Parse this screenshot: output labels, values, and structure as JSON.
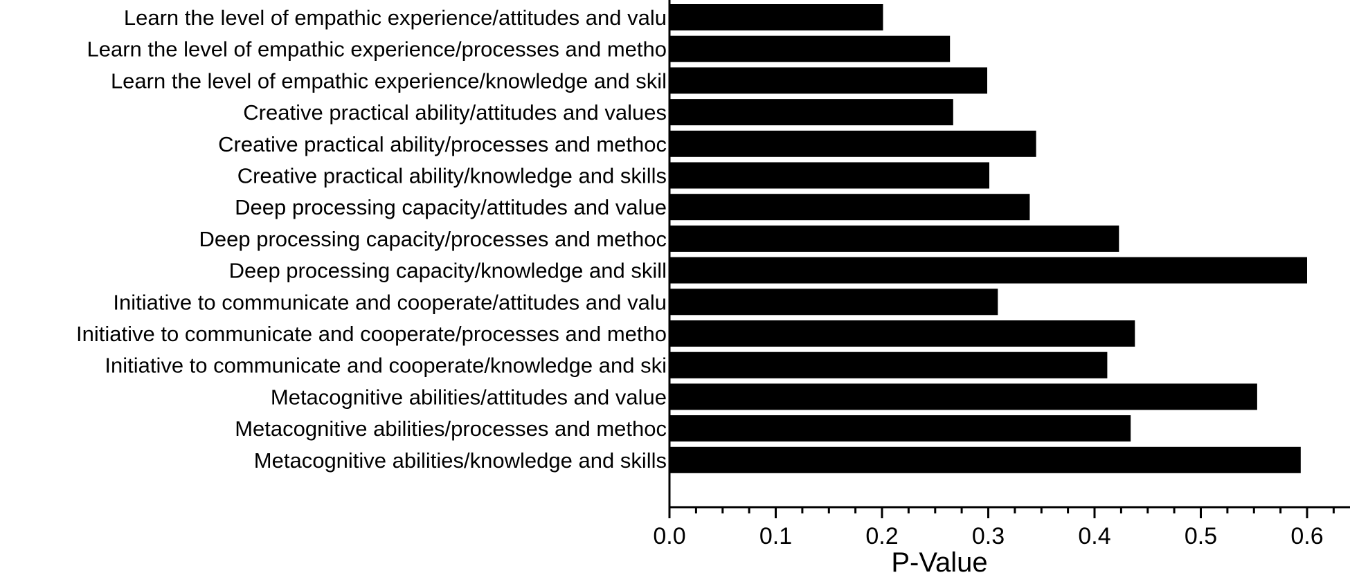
{
  "chart_data": {
    "type": "bar",
    "orientation": "horizontal",
    "categories": [
      "Learn the level of empathic experience/attitudes and valu",
      "Learn the level of empathic experience/processes and metho",
      "Learn the level of empathic experience/knowledge and skil",
      "Creative practical ability/attitudes and values",
      "Creative practical ability/processes and methoc",
      "Creative practical ability/knowledge and skills",
      "Deep processing capacity/attitudes and value",
      "Deep processing capacity/processes and methoc",
      "Deep processing capacity/knowledge and skill",
      "Initiative to communicate and cooperate/attitudes and valu",
      "Initiative to communicate and cooperate/processes and metho",
      "Initiative to communicate and cooperate/knowledge and ski",
      "Metacognitive abilities/attitudes and value",
      "Metacognitive abilities/processes and methoc",
      "Metacognitive abilities/knowledge and skills"
    ],
    "values": [
      0.201,
      0.264,
      0.299,
      0.267,
      0.345,
      0.301,
      0.339,
      0.423,
      0.6,
      0.309,
      0.438,
      0.412,
      0.553,
      0.434,
      0.594
    ],
    "xlabel": "P-Value",
    "ylabel": "",
    "xlim": [
      0,
      0.645
    ],
    "ticks": [
      "0.0",
      "0.1",
      "0.2",
      "0.3",
      "0.4",
      "0.5",
      "0.6"
    ],
    "bar_color": "#000000",
    "grid": false
  }
}
